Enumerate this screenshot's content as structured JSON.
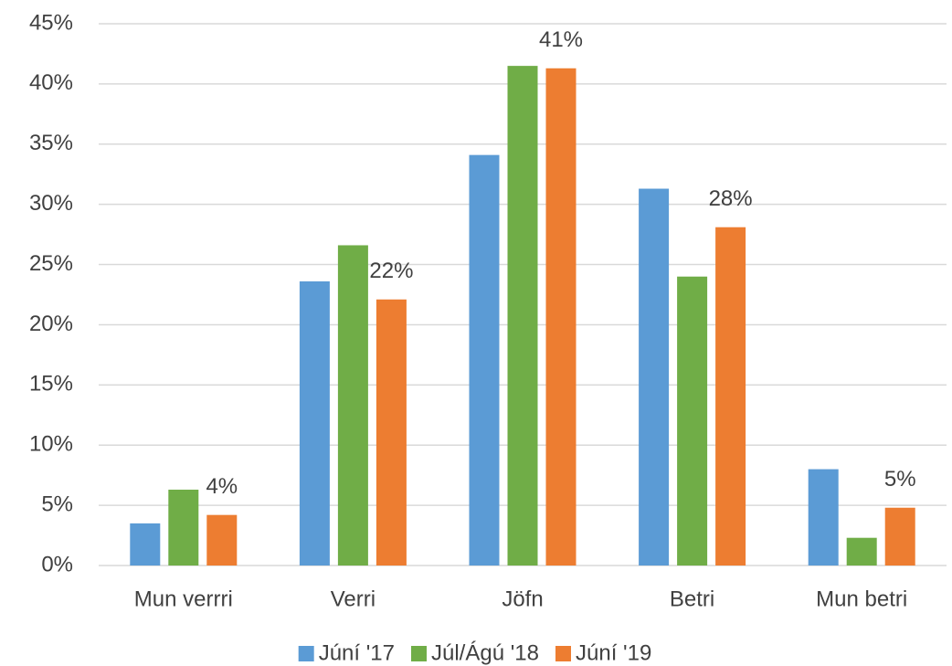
{
  "chart_data": {
    "type": "bar",
    "categories": [
      "Mun verrri",
      "Verri",
      "Jöfn",
      "Betri",
      "Mun betri"
    ],
    "series": [
      {
        "name": "Júní '17",
        "color": "#5b9bd5",
        "values": [
          3.5,
          23.6,
          34.1,
          31.3,
          8.0
        ]
      },
      {
        "name": "Júl/Ágú '18",
        "color": "#70ad47",
        "values": [
          6.3,
          26.6,
          41.5,
          24.0,
          2.3
        ]
      },
      {
        "name": "Júní '19",
        "color": "#ed7d31",
        "values": [
          4.2,
          22.1,
          41.3,
          28.1,
          4.8
        ],
        "value_labels": [
          "4%",
          "22%",
          "41%",
          "28%",
          "5%"
        ]
      }
    ],
    "ylim": [
      0,
      45
    ],
    "yticks": [
      {
        "value": 0,
        "label": "0%"
      },
      {
        "value": 5,
        "label": "5%"
      },
      {
        "value": 10,
        "label": "10%"
      },
      {
        "value": 15,
        "label": "15%"
      },
      {
        "value": 20,
        "label": "20%"
      },
      {
        "value": 25,
        "label": "25%"
      },
      {
        "value": 30,
        "label": "30%"
      },
      {
        "value": 35,
        "label": "35%"
      },
      {
        "value": 40,
        "label": "40%"
      },
      {
        "value": 45,
        "label": "45%"
      }
    ],
    "grid": true,
    "legend": "bottom"
  }
}
